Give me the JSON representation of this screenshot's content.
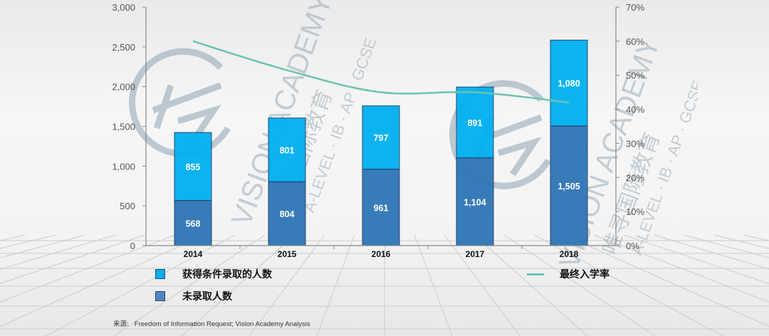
{
  "chart_data": {
    "type": "bar",
    "subtype": "stacked-bar-with-line",
    "categories": [
      "2014",
      "2015",
      "2016",
      "2017",
      "2018"
    ],
    "series": [
      {
        "name": "未录取人数",
        "type": "bar",
        "axis": "left",
        "color": "#2e75b6",
        "values": [
          568,
          804,
          961,
          1104,
          1505
        ],
        "labels": [
          "568",
          "804",
          "961",
          "1,104",
          "1,505"
        ]
      },
      {
        "name": "获得条件录取的人数",
        "type": "bar",
        "axis": "left",
        "color": "#00b0f0",
        "values": [
          855,
          801,
          797,
          891,
          1080
        ],
        "labels": [
          "855",
          "801",
          "797",
          "891",
          "1,080"
        ]
      },
      {
        "name": "最终入学率",
        "type": "line",
        "axis": "right",
        "color": "#6cc2b0",
        "values": [
          0.6,
          0.515,
          0.45,
          0.45,
          0.42
        ]
      }
    ],
    "y_left": {
      "ylim": [
        0,
        3000
      ],
      "ticks": [
        "0",
        "500",
        "1,000",
        "1,500",
        "2,000",
        "2,500",
        "3,000"
      ]
    },
    "y_right": {
      "ylim": [
        0,
        0.7
      ],
      "ticks": [
        "0%",
        "10%",
        "20%",
        "30%",
        "40%",
        "50%",
        "60%",
        "70%"
      ]
    },
    "title": "",
    "xlabel": "",
    "ylabel": "",
    "grid": false,
    "legend_position": "bottom"
  },
  "legend": {
    "conditional_offer": "获得条件录取的人数",
    "not_admitted": "未录取人数",
    "final_enrollment_rate": "最终入学率"
  },
  "source": {
    "label": "来源:",
    "text": "Freedom of Information Request; Vision Academy Analysis"
  },
  "watermark": {
    "brand": "VISION ACADEMY",
    "chinese": "唯寻国际教育",
    "subtitle": "A-LEVEL · IB · AP · GCSE"
  },
  "colors": {
    "not_admitted": "#2e75b6",
    "conditional": "#00b0f0",
    "line": "#6cc2b0"
  }
}
